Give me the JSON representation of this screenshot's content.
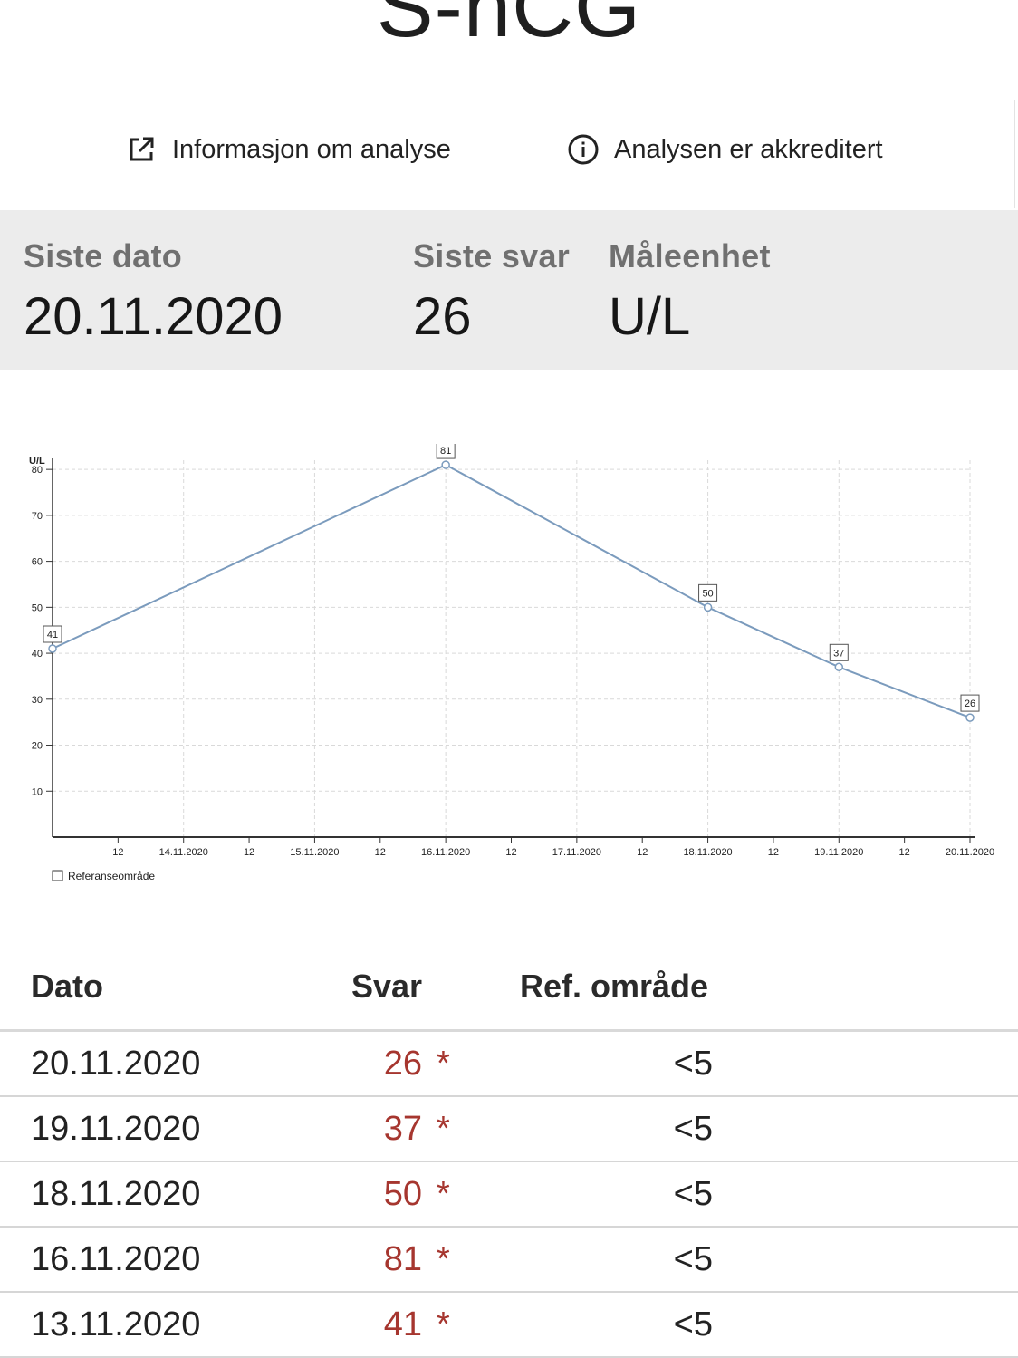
{
  "page": {
    "title": "S-hCG"
  },
  "links": [
    {
      "label": "Informasjon om analyse",
      "icon": "external-link-icon"
    },
    {
      "label": "Analysen er akkreditert",
      "icon": "info-icon"
    }
  ],
  "summary": {
    "last_date_label": "Siste dato",
    "last_date_value": "20.11.2020",
    "last_result_label": "Siste svar",
    "last_result_value": "26",
    "unit_label": "Måleenhet",
    "unit_value": "U/L"
  },
  "chart_data": {
    "type": "line",
    "ylabel": "U/L",
    "ylim": [
      0,
      82
    ],
    "yticks": [
      10,
      20,
      30,
      40,
      50,
      60,
      70,
      80
    ],
    "x_dates": [
      "13.11.2020",
      "16.11.2020",
      "18.11.2020",
      "19.11.2020",
      "20.11.2020"
    ],
    "series": [
      {
        "values": [
          41,
          81,
          50,
          37,
          26
        ]
      }
    ],
    "xticks": [
      "12",
      "14.11.2020",
      "12",
      "15.11.2020",
      "12",
      "16.11.2020",
      "12",
      "17.11.2020",
      "12",
      "18.11.2020",
      "12",
      "19.11.2020",
      "12",
      "20.11.2020"
    ],
    "grid": true,
    "legend": {
      "label": "Referanseområde",
      "placement": "bottom-left"
    },
    "colors": {
      "line": "#7b9bbd"
    }
  },
  "table": {
    "headers": {
      "date": "Dato",
      "result": "Svar",
      "ref": "Ref. område"
    },
    "rows": [
      {
        "date": "20.11.2020",
        "result": "26",
        "flag": "*",
        "ref": "<5"
      },
      {
        "date": "19.11.2020",
        "result": "37",
        "flag": "*",
        "ref": "<5"
      },
      {
        "date": "18.11.2020",
        "result": "50",
        "flag": "*",
        "ref": "<5"
      },
      {
        "date": "16.11.2020",
        "result": "81",
        "flag": "*",
        "ref": "<5"
      },
      {
        "date": "13.11.2020",
        "result": "41",
        "flag": "*",
        "ref": "<5"
      }
    ]
  },
  "colors": {
    "result_flag": "#a6362f",
    "summary_bg": "#ececec"
  }
}
